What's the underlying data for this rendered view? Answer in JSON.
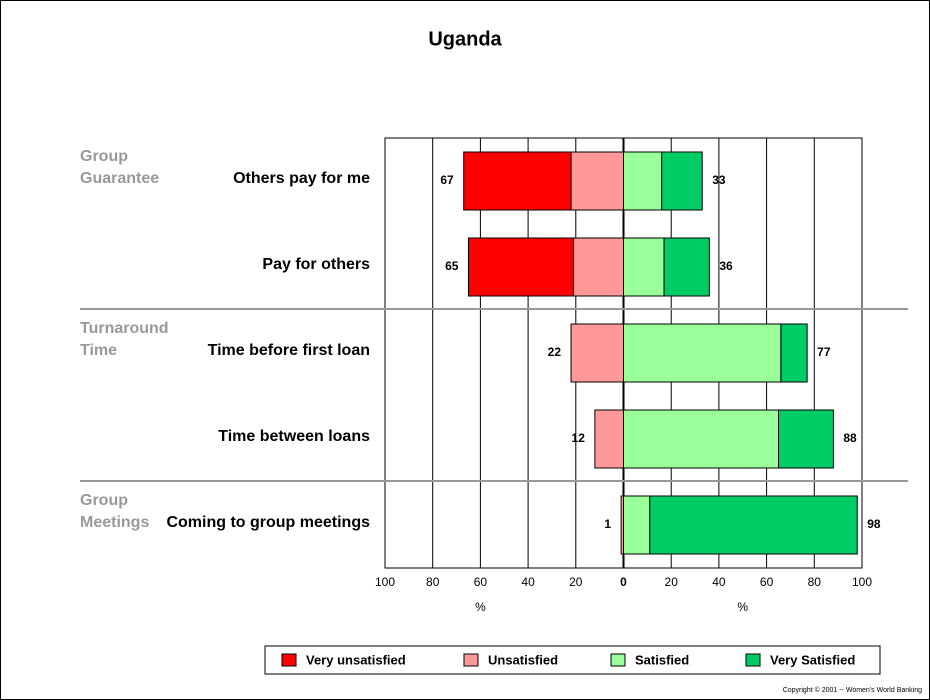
{
  "chart_data": {
    "type": "diverging_bar",
    "title": "Uganda",
    "groups": [
      {
        "lines": [
          "Group",
          "Guarantee"
        ],
        "categories": [
          "Others pay for me",
          "Pay for others"
        ]
      },
      {
        "lines": [
          "Turnaround",
          "Time"
        ],
        "categories": [
          "Time before first loan",
          "Time between loans"
        ]
      },
      {
        "lines": [
          "Group",
          "Meetings"
        ],
        "categories": [
          "Coming to group meetings"
        ]
      }
    ],
    "series": [
      {
        "name": "Very unsatisfied",
        "color": "#ff0000",
        "side": "left",
        "values": [
          45,
          44,
          0,
          0,
          0
        ]
      },
      {
        "name": "Unsatisfied",
        "color": "#ff9999",
        "side": "left",
        "values": [
          22,
          21,
          22,
          12,
          1
        ]
      },
      {
        "name": "Satisfied",
        "color": "#99ff99",
        "side": "right",
        "values": [
          16,
          17,
          66,
          65,
          11
        ]
      },
      {
        "name": "Very Satisfied",
        "color": "#00cc66",
        "side": "right",
        "values": [
          17,
          19,
          11,
          23,
          87
        ]
      }
    ],
    "left_totals": [
      67,
      65,
      22,
      12,
      1
    ],
    "right_totals": [
      33,
      36,
      77,
      88,
      98
    ],
    "xlim": [
      -100,
      100
    ],
    "xticks": [
      {
        "value": -100,
        "label": "100"
      },
      {
        "value": -80,
        "label": "80"
      },
      {
        "value": -60,
        "label": "60"
      },
      {
        "value": -40,
        "label": "40"
      },
      {
        "value": -20,
        "label": "20"
      },
      0,
      20,
      40,
      60,
      80,
      100
    ],
    "x_labels": [
      "%",
      "%"
    ],
    "copyright": "Copyright © 2001 -- Women's World Banking"
  }
}
